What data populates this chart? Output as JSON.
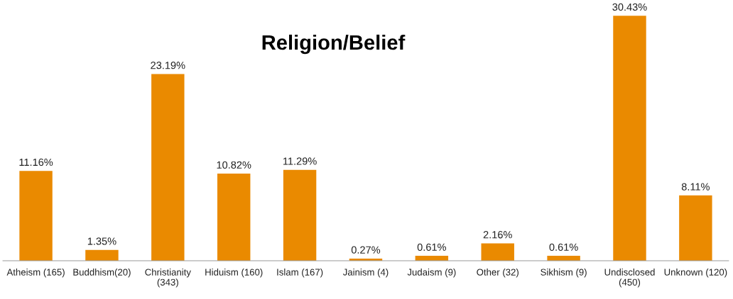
{
  "chart_data": {
    "type": "bar",
    "title": "Religion/Belief",
    "categories": [
      "Atheism (165)",
      "Buddhism(20)",
      "Christianity\n(343)",
      "Hiduism (160)",
      "Islam (167)",
      "Jainism (4)",
      "Judaism (9)",
      "Other (32)",
      "Sikhism (9)",
      "Undisclosed\n(450)",
      "Unknown (120)"
    ],
    "values": [
      11.16,
      1.35,
      23.19,
      10.82,
      11.29,
      0.27,
      0.61,
      2.16,
      0.61,
      30.43,
      8.11
    ],
    "value_labels": [
      "11.16%",
      "1.35%",
      "23.19%",
      "10.82%",
      "11.29%",
      "0.27%",
      "0.61%",
      "2.16%",
      "0.61%",
      "30.43%",
      "8.11%"
    ],
    "color": "#ea8a00",
    "grid": false,
    "legend": false
  }
}
